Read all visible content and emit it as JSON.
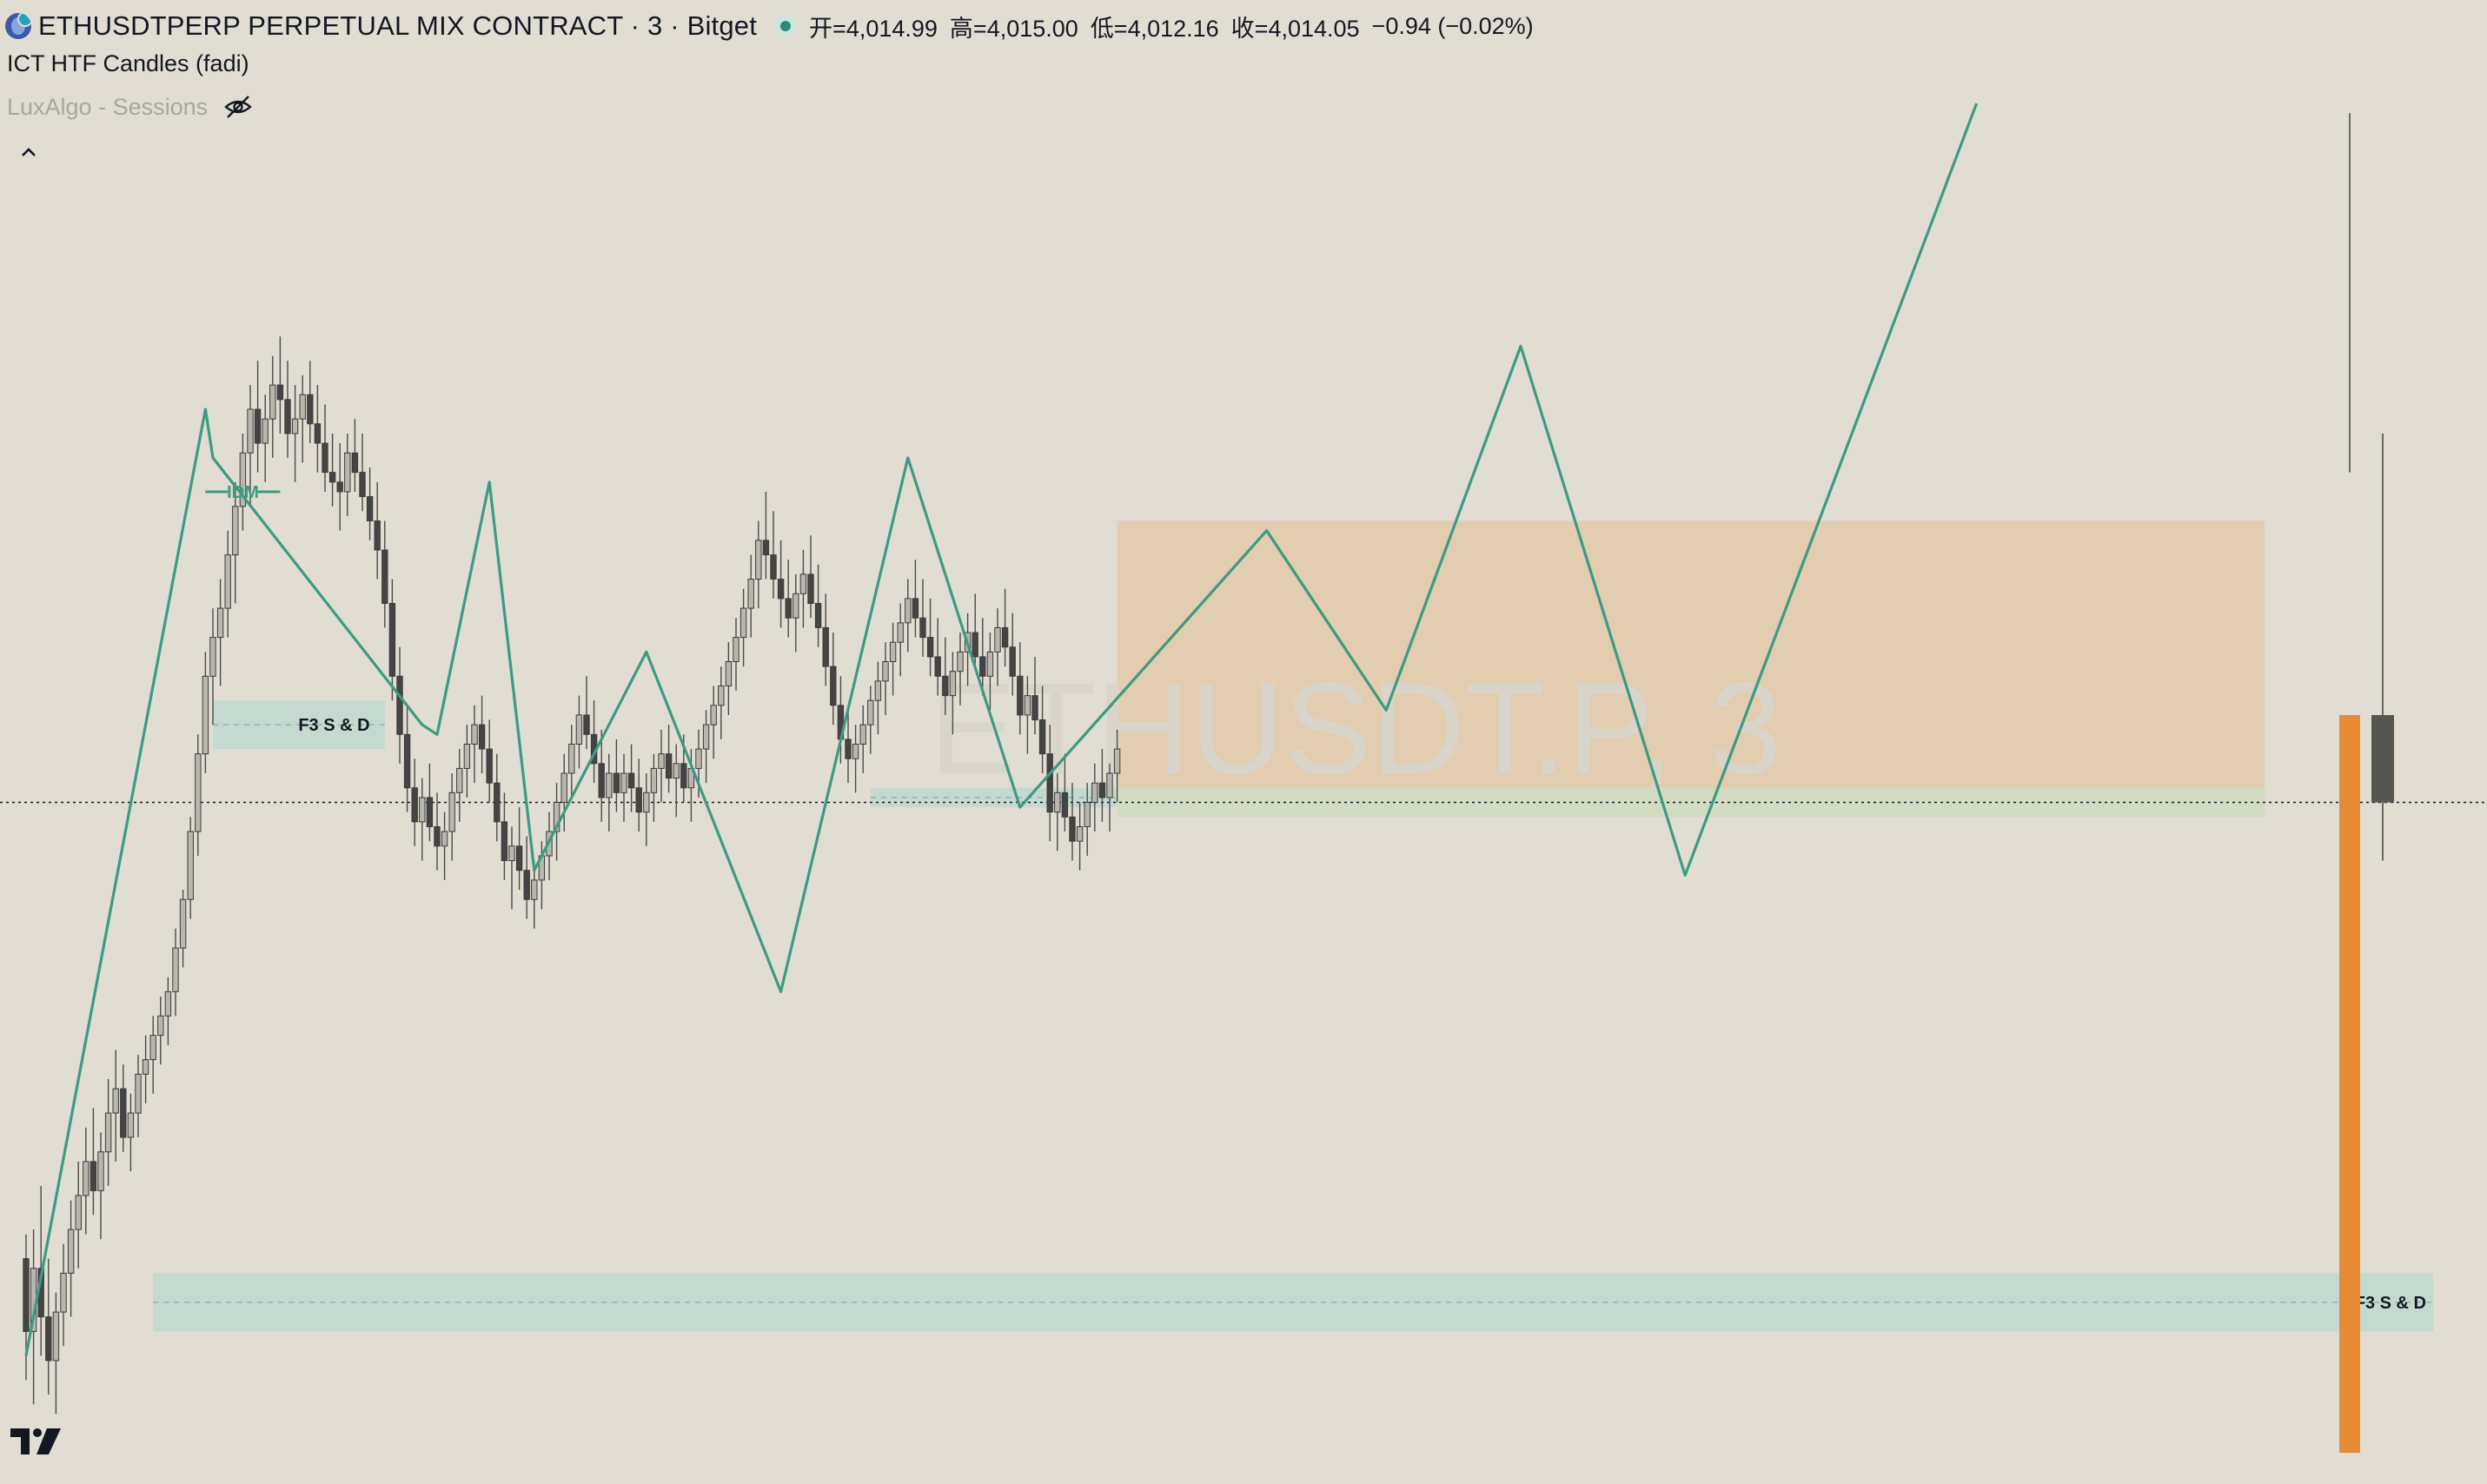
{
  "legend": {
    "symbol_icon": "ethereum-icon",
    "title": "ETHUSDTPERP PERPETUAL MIX CONTRACT · 3 · Bitget",
    "ohlc": [
      "开=4,014.99",
      "高=4,015.00",
      "低=4,012.16",
      "收=4,014.05"
    ],
    "change": "−0.94 (−0.02%)",
    "indicators": [
      "ICT HTF Candles (fadi)",
      "LuxAlgo - Sessions"
    ]
  },
  "watermark": "ETHUSDT.P, 3",
  "colors": {
    "background": "#e1ddd2",
    "zigzag": "#3d9a83",
    "demand_zone": "#c5d9d1",
    "supply_zone": "#e2cdb0",
    "green_zone": "#d2dcc2",
    "bull_candle": "#b9b6ae",
    "bear_candle": "#444444",
    "htf_bar": "#e88b37"
  },
  "chart_data": {
    "type": "candlestick",
    "title": "ETHUSDTPERP PERPETUAL MIX CONTRACT · 3 · Bitget",
    "series": [
      {
        "name": "ETHUSDT.P",
        "ohlc": [
          [
            3990,
            3995,
            3965,
            3975
          ],
          [
            3975,
            3996,
            3960,
            3988
          ],
          [
            3988,
            4005,
            3970,
            3978
          ],
          [
            3978,
            3990,
            3962,
            3969
          ],
          [
            3969,
            3983,
            3958,
            3979
          ],
          [
            3979,
            3993,
            3972,
            3987
          ],
          [
            3987,
            4002,
            3978,
            3996
          ],
          [
            3996,
            4010,
            3988,
            4003
          ],
          [
            4003,
            4017,
            3995,
            4010
          ],
          [
            4010,
            4021,
            3999,
            4004
          ],
          [
            4004,
            4016,
            3994,
            4012
          ],
          [
            4012,
            4027,
            4005,
            4020
          ],
          [
            4020,
            4033,
            4010,
            4025
          ],
          [
            4025,
            4030,
            4012,
            4015
          ],
          [
            4015,
            4024,
            4008,
            4020
          ],
          [
            4020,
            4032,
            4015,
            4028
          ],
          [
            4028,
            4036,
            4022,
            4031
          ],
          [
            4031,
            4040,
            4024,
            4036
          ],
          [
            4036,
            4044,
            4030,
            4040
          ],
          [
            4040,
            4048,
            4034,
            4045
          ],
          [
            4045,
            4058,
            4040,
            4054
          ],
          [
            4054,
            4066,
            4050,
            4064
          ],
          [
            4064,
            4081,
            4060,
            4078
          ],
          [
            4078,
            4098,
            4073,
            4094
          ],
          [
            4094,
            4115,
            4090,
            4110
          ],
          [
            4110,
            4124,
            4100,
            4118
          ],
          [
            4118,
            4130,
            4108,
            4124
          ],
          [
            4124,
            4140,
            4118,
            4135
          ],
          [
            4135,
            4150,
            4125,
            4145
          ],
          [
            4145,
            4160,
            4140,
            4156
          ],
          [
            4156,
            4170,
            4145,
            4165
          ],
          [
            4165,
            4175,
            4152,
            4158
          ],
          [
            4158,
            4168,
            4150,
            4163
          ],
          [
            4163,
            4176,
            4155,
            4170
          ],
          [
            4170,
            4180,
            4160,
            4167
          ],
          [
            4167,
            4175,
            4155,
            4160
          ],
          [
            4160,
            4170,
            4150,
            4163
          ],
          [
            4163,
            4172,
            4154,
            4168
          ],
          [
            4168,
            4175,
            4158,
            4162
          ],
          [
            4162,
            4170,
            4152,
            4158
          ],
          [
            4158,
            4166,
            4148,
            4152
          ],
          [
            4152,
            4160,
            4145,
            4150
          ],
          [
            4150,
            4158,
            4140,
            4148
          ],
          [
            4148,
            4160,
            4143,
            4156
          ],
          [
            4156,
            4163,
            4148,
            4152
          ],
          [
            4152,
            4160,
            4144,
            4147
          ],
          [
            4147,
            4153,
            4138,
            4142
          ],
          [
            4142,
            4150,
            4130,
            4136
          ],
          [
            4136,
            4142,
            4120,
            4125
          ],
          [
            4125,
            4130,
            4105,
            4110
          ],
          [
            4110,
            4116,
            4092,
            4098
          ],
          [
            4098,
            4104,
            4082,
            4087
          ],
          [
            4087,
            4093,
            4075,
            4080
          ],
          [
            4080,
            4089,
            4072,
            4085
          ],
          [
            4085,
            4092,
            4076,
            4079
          ],
          [
            4079,
            4086,
            4070,
            4075
          ],
          [
            4075,
            4082,
            4068,
            4078
          ],
          [
            4078,
            4090,
            4072,
            4086
          ],
          [
            4086,
            4095,
            4080,
            4091
          ],
          [
            4091,
            4100,
            4085,
            4096
          ],
          [
            4096,
            4104,
            4088,
            4100
          ],
          [
            4100,
            4106,
            4090,
            4095
          ],
          [
            4095,
            4101,
            4084,
            4088
          ],
          [
            4088,
            4094,
            4076,
            4080
          ],
          [
            4080,
            4086,
            4068,
            4072
          ],
          [
            4072,
            4079,
            4062,
            4075
          ],
          [
            4075,
            4083,
            4066,
            4070
          ],
          [
            4070,
            4077,
            4060,
            4064
          ],
          [
            4064,
            4072,
            4058,
            4068
          ],
          [
            4068,
            4076,
            4062,
            4073
          ],
          [
            4073,
            4082,
            4068,
            4078
          ],
          [
            4078,
            4088,
            4072,
            4084
          ],
          [
            4084,
            4094,
            4078,
            4090
          ],
          [
            4090,
            4100,
            4085,
            4096
          ],
          [
            4096,
            4106,
            4091,
            4102
          ],
          [
            4102,
            4110,
            4095,
            4098
          ],
          [
            4098,
            4105,
            4088,
            4092
          ],
          [
            4092,
            4099,
            4080,
            4085
          ],
          [
            4085,
            4094,
            4078,
            4090
          ],
          [
            4090,
            4097,
            4082,
            4086
          ],
          [
            4086,
            4094,
            4080,
            4090
          ],
          [
            4090,
            4096,
            4082,
            4087
          ],
          [
            4087,
            4093,
            4078,
            4082
          ],
          [
            4082,
            4090,
            4075,
            4086
          ],
          [
            4086,
            4094,
            4080,
            4091
          ],
          [
            4091,
            4099,
            4084,
            4094
          ],
          [
            4094,
            4100,
            4086,
            4089
          ],
          [
            4089,
            4096,
            4081,
            4092
          ],
          [
            4092,
            4098,
            4084,
            4087
          ],
          [
            4087,
            4095,
            4080,
            4091
          ],
          [
            4091,
            4099,
            4085,
            4095
          ],
          [
            4095,
            4103,
            4088,
            4100
          ],
          [
            4100,
            4108,
            4093,
            4104
          ],
          [
            4104,
            4112,
            4097,
            4108
          ],
          [
            4108,
            4117,
            4102,
            4113
          ],
          [
            4113,
            4122,
            4107,
            4118
          ],
          [
            4118,
            4128,
            4112,
            4124
          ],
          [
            4124,
            4135,
            4118,
            4130
          ],
          [
            4130,
            4142,
            4124,
            4138
          ],
          [
            4138,
            4148,
            4130,
            4135
          ],
          [
            4135,
            4144,
            4126,
            4130
          ],
          [
            4130,
            4138,
            4120,
            4126
          ],
          [
            4126,
            4134,
            4118,
            4122
          ],
          [
            4122,
            4131,
            4115,
            4127
          ],
          [
            4127,
            4136,
            4120,
            4131
          ],
          [
            4131,
            4139,
            4122,
            4125
          ],
          [
            4125,
            4133,
            4116,
            4120
          ],
          [
            4120,
            4127,
            4108,
            4112
          ],
          [
            4112,
            4119,
            4100,
            4104
          ],
          [
            4104,
            4110,
            4092,
            4097
          ],
          [
            4097,
            4103,
            4088,
            4093
          ],
          [
            4093,
            4100,
            4086,
            4096
          ],
          [
            4096,
            4104,
            4090,
            4100
          ],
          [
            4100,
            4108,
            4094,
            4105
          ],
          [
            4105,
            4113,
            4098,
            4109
          ],
          [
            4109,
            4117,
            4102,
            4113
          ],
          [
            4113,
            4121,
            4106,
            4117
          ],
          [
            4117,
            4125,
            4110,
            4121
          ],
          [
            4121,
            4130,
            4115,
            4126
          ],
          [
            4126,
            4134,
            4118,
            4122
          ],
          [
            4122,
            4130,
            4114,
            4118
          ],
          [
            4118,
            4126,
            4110,
            4114
          ],
          [
            4114,
            4122,
            4106,
            4110
          ],
          [
            4110,
            4118,
            4102,
            4106
          ],
          [
            4106,
            4115,
            4098,
            4111
          ],
          [
            4111,
            4119,
            4104,
            4115
          ],
          [
            4115,
            4123,
            4108,
            4119
          ],
          [
            4119,
            4127,
            4112,
            4114
          ],
          [
            4114,
            4122,
            4106,
            4110
          ],
          [
            4110,
            4119,
            4103,
            4115
          ],
          [
            4115,
            4124,
            4108,
            4120
          ],
          [
            4120,
            4128,
            4112,
            4116
          ],
          [
            4116,
            4123,
            4106,
            4110
          ],
          [
            4110,
            4117,
            4098,
            4102
          ],
          [
            4102,
            4110,
            4094,
            4106
          ],
          [
            4106,
            4114,
            4098,
            4101
          ],
          [
            4101,
            4108,
            4090,
            4094
          ],
          [
            4094,
            4100,
            4076,
            4082
          ],
          [
            4082,
            4090,
            4074,
            4086
          ],
          [
            4086,
            4094,
            4078,
            4081
          ],
          [
            4081,
            4088,
            4072,
            4076
          ],
          [
            4076,
            4084,
            4070,
            4079
          ],
          [
            4079,
            4088,
            4073,
            4084
          ],
          [
            4084,
            4092,
            4078,
            4088
          ],
          [
            4088,
            4095,
            4080,
            4085
          ],
          [
            4085,
            4092,
            4078,
            4090
          ],
          [
            4090,
            4099,
            4084,
            4095
          ]
        ]
      }
    ],
    "zigzag": [
      [
        0,
        3970
      ],
      [
        24,
        4165
      ],
      [
        25,
        4155
      ],
      [
        53,
        4100
      ],
      [
        55,
        4098
      ],
      [
        62,
        4150
      ],
      [
        68,
        4070
      ],
      [
        83,
        4115
      ],
      [
        101,
        4045
      ],
      [
        118,
        4155
      ],
      [
        133,
        4083
      ],
      [
        166,
        4140
      ],
      [
        182,
        4103
      ],
      [
        200,
        4178
      ],
      [
        222,
        4069
      ],
      [
        261,
        4228
      ]
    ],
    "zones": [
      {
        "kind": "demand",
        "label": "F3   S & D",
        "ymin": 4095,
        "ymax": 4105
      },
      {
        "kind": "demand",
        "ymin": 4083,
        "ymax": 4087
      },
      {
        "kind": "demand",
        "label": "F3   S & D",
        "ymin": 3975,
        "ymax": 3987
      },
      {
        "kind": "supply",
        "ymin": 4087,
        "ymax": 4142
      },
      {
        "kind": "green",
        "ymin": 4081,
        "ymax": 4087
      }
    ],
    "annotations": [
      "IDM",
      "F3   S & D",
      "F3   S & D"
    ],
    "current_price": 4084,
    "htf_candles": [
      {
        "name": "htf-orange",
        "ymin": 3950,
        "ymax": 4102
      },
      {
        "name": "htf-dark",
        "open": 4102,
        "close": 4084,
        "high": 4160,
        "low": 4072
      }
    ]
  }
}
